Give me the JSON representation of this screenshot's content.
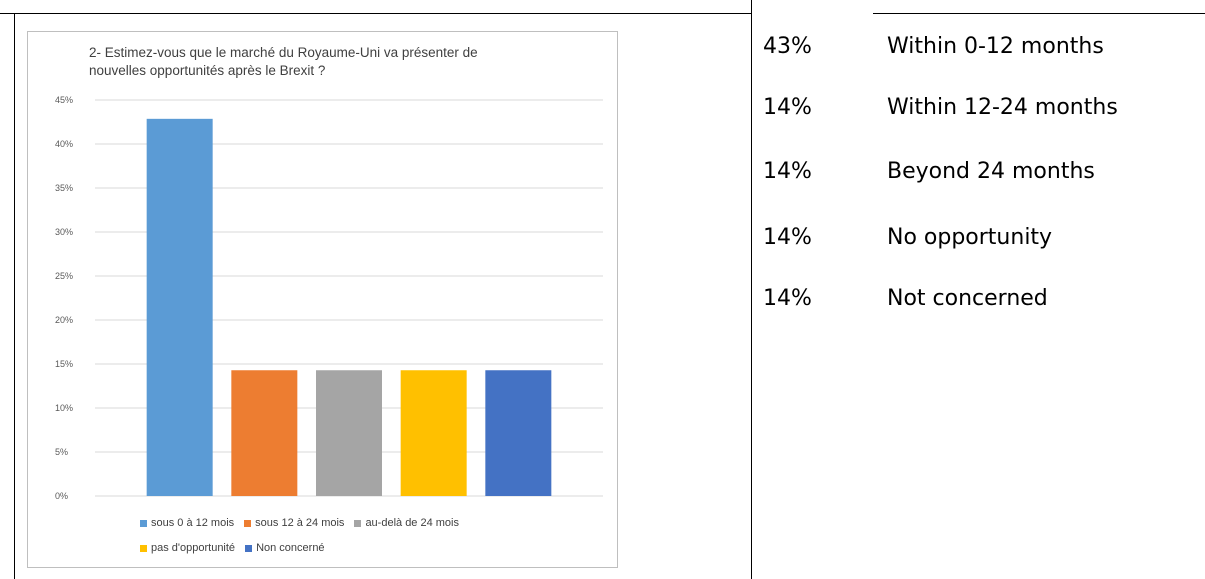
{
  "chart_data": {
    "type": "bar",
    "title": "2- Estimez-vous que le marché du Royaume-Uni va présenter de nouvelles opportunités après le Brexit ?",
    "title_lines": [
      "2- Estimez-vous que le marché du Royaume-Uni va présenter de",
      "nouvelles opportunités après le Brexit ?"
    ],
    "categories": [
      "sous 0 à 12 mois",
      "sous 12 à 24 mois",
      "au-delà de 24 mois",
      "pas d'opportunité",
      "Non concerné"
    ],
    "values": [
      42.86,
      14.29,
      14.29,
      14.29,
      14.29
    ],
    "colors": [
      "#5b9bd5",
      "#ed7d31",
      "#a5a5a5",
      "#ffc000",
      "#4472c4"
    ],
    "ylim": [
      0,
      45
    ],
    "yticks": [
      0,
      5,
      10,
      15,
      20,
      25,
      30,
      35,
      40,
      45
    ],
    "ytick_labels": [
      "0%",
      "5%",
      "10%",
      "15%",
      "20%",
      "25%",
      "30%",
      "35%",
      "40%",
      "45%"
    ],
    "grid": true,
    "legend_position": "bottom"
  },
  "right_table": [
    {
      "pct": "43%",
      "label": "Within 0-12 months"
    },
    {
      "pct": "14%",
      "label": "Within 12-24 months"
    },
    {
      "pct": "14%",
      "label": "Beyond 24 months"
    },
    {
      "pct": "14%",
      "label": "No opportunity"
    },
    {
      "pct": "14%",
      "label": "Not concerned"
    }
  ]
}
